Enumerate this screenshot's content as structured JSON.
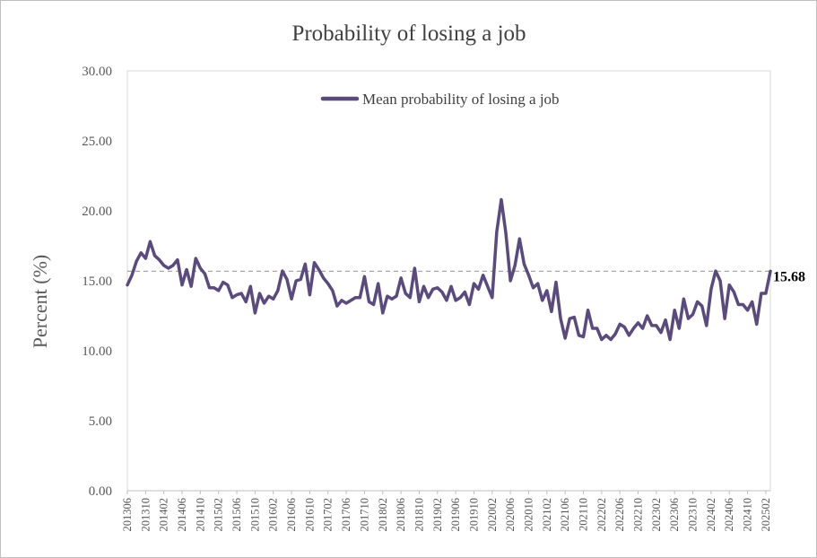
{
  "chart_data": {
    "type": "line",
    "title": "Probability  of losing  a job",
    "xlabel": "",
    "ylabel": "Percent (%)",
    "ylim": [
      0,
      30
    ],
    "y_ticks": [
      "0.00",
      "5.00",
      "10.00",
      "15.00",
      "20.00",
      "25.00",
      "30.00"
    ],
    "x_tick_labels": [
      "201306",
      "201310",
      "201402",
      "201406",
      "201410",
      "201502",
      "201506",
      "201510",
      "201602",
      "201606",
      "201610",
      "201702",
      "201706",
      "201710",
      "201802",
      "201806",
      "201810",
      "201902",
      "201906",
      "201910",
      "202002",
      "202006",
      "202010",
      "202102",
      "202106",
      "202110",
      "202202",
      "202206",
      "202210",
      "202302",
      "202306",
      "202310",
      "202402",
      "202406",
      "202410",
      "202502"
    ],
    "x_start": "201306",
    "x_end": "202502",
    "grid": false,
    "legend_position": "top-center",
    "series": [
      {
        "name": "Mean probability of losing  a job",
        "color": "#5b4a7d",
        "values": [
          14.7,
          15.4,
          16.4,
          17.0,
          16.6,
          17.8,
          16.8,
          16.5,
          16.1,
          15.9,
          16.1,
          16.5,
          14.7,
          15.8,
          14.6,
          16.6,
          15.9,
          15.5,
          14.5,
          14.5,
          14.3,
          14.9,
          14.7,
          13.8,
          14.0,
          14.1,
          13.5,
          14.6,
          12.7,
          14.1,
          13.4,
          13.9,
          13.7,
          14.3,
          15.7,
          15.1,
          13.7,
          15.0,
          15.1,
          16.2,
          14.0,
          16.3,
          15.8,
          15.2,
          14.8,
          14.3,
          13.2,
          13.6,
          13.4,
          13.6,
          13.8,
          13.8,
          15.3,
          13.5,
          13.3,
          14.8,
          12.7,
          13.9,
          13.7,
          13.9,
          15.2,
          14.1,
          13.8,
          15.9,
          13.5,
          14.6,
          13.8,
          14.4,
          14.5,
          14.2,
          13.6,
          14.6,
          13.6,
          13.8,
          14.2,
          13.3,
          14.8,
          14.4,
          15.4,
          14.6,
          13.8,
          18.5,
          20.8,
          18.4,
          15.0,
          16.1,
          18.0,
          16.2,
          15.4,
          14.5,
          14.8,
          13.6,
          14.3,
          12.8,
          14.9,
          12.3,
          10.9,
          12.3,
          12.4,
          11.1,
          11.0,
          12.9,
          11.6,
          11.6,
          10.8,
          11.1,
          10.8,
          11.2,
          11.9,
          11.7,
          11.1,
          11.6,
          12.0,
          11.6,
          12.5,
          11.8,
          11.8,
          11.3,
          12.2,
          10.8,
          12.9,
          11.6,
          13.7,
          12.3,
          12.6,
          13.5,
          13.2,
          11.8,
          14.4,
          15.7,
          15.0,
          12.3,
          14.7,
          14.2,
          13.3,
          13.3,
          12.9,
          13.5,
          11.9,
          14.1,
          14.1,
          15.68
        ]
      }
    ],
    "reference_line": {
      "value": 15.68,
      "label": "15.68",
      "color": "#a6a6a6",
      "style": "dashed"
    }
  }
}
